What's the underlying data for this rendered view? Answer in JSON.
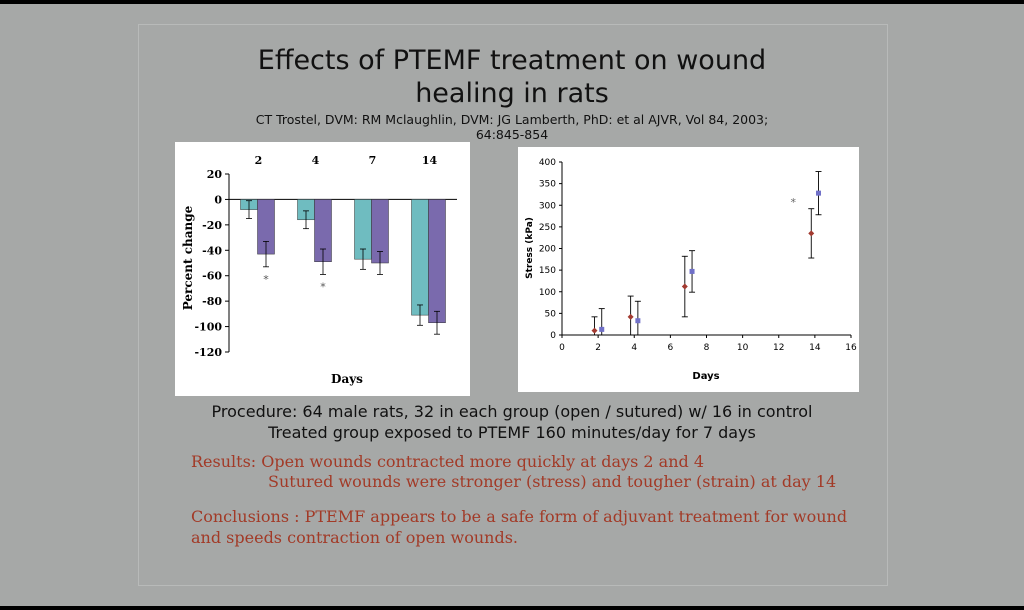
{
  "slide": {
    "title_line1": "Effects of PTEMF treatment on wound",
    "title_line2": "healing in rats",
    "citation_line1": "CT Trostel, DVM: RM Mclaughlin, DVM: JG Lamberth, PhD: et al AJVR, Vol 84, 2003;",
    "citation_line2": "64:845-854",
    "procedure_line1": "Procedure: 64 male rats, 32 in each group (open / sutured) w/ 16 in control",
    "procedure_line2": "Treated group exposed to PTEMF 160 minutes/day for 7 days",
    "results_line1": "Results: Open wounds contracted more quickly at days 2 and 4",
    "results_line2": "Sutured wounds were stronger (stress) and tougher (strain) at day 14",
    "conclusions_line1": "Conclusions : PTEMF appears to be a safe form of adjuvant treatment for wound",
    "conclusions_line2": "and speeds contraction of open wounds."
  },
  "colors": {
    "background": "#a6a8a7",
    "red_text": "#a23a27",
    "bar_control": "#6fbcc0",
    "bar_treated": "#7a6aad",
    "point_control": "#a23a30",
    "point_treated": "#7070c8"
  },
  "chart_data": [
    {
      "type": "bar",
      "categories": [
        "2",
        "4",
        "7",
        "14"
      ],
      "series": [
        {
          "values": [
            -8,
            -16,
            -47,
            -91
          ],
          "errors": [
            7,
            7,
            8,
            8
          ]
        },
        {
          "values": [
            -43,
            -49,
            -50,
            -97
          ],
          "errors": [
            10,
            10,
            9,
            9
          ]
        }
      ],
      "significance_marks": [
        "*",
        "*",
        "",
        ""
      ],
      "xlabel": "Days",
      "ylabel": "Percent change",
      "ylim": [
        -120,
        20
      ],
      "yticks": [
        20,
        0,
        -20,
        -40,
        -60,
        -80,
        -100,
        -120
      ],
      "category_labels_position": "top"
    },
    {
      "type": "scatter",
      "series": [
        {
          "x": [
            1.8,
            3.8,
            6.8,
            13.8
          ],
          "y": [
            10,
            42,
            112,
            235
          ],
          "errors": [
            32,
            48,
            70,
            57
          ]
        },
        {
          "x": [
            2.2,
            4.2,
            7.2,
            14.2
          ],
          "y": [
            13,
            33,
            147,
            328
          ],
          "errors": [
            48,
            45,
            48,
            50
          ]
        }
      ],
      "significance_marks": [
        {
          "x": 12.8,
          "y": 308,
          "text": "*"
        }
      ],
      "xlabel": "Days",
      "ylabel": "Stress (kPa)",
      "xlim": [
        0,
        16
      ],
      "ylim": [
        0,
        400
      ],
      "xticks": [
        0,
        2,
        4,
        6,
        8,
        10,
        12,
        14,
        16
      ],
      "yticks": [
        0,
        50,
        100,
        150,
        200,
        250,
        300,
        350,
        400
      ]
    }
  ]
}
